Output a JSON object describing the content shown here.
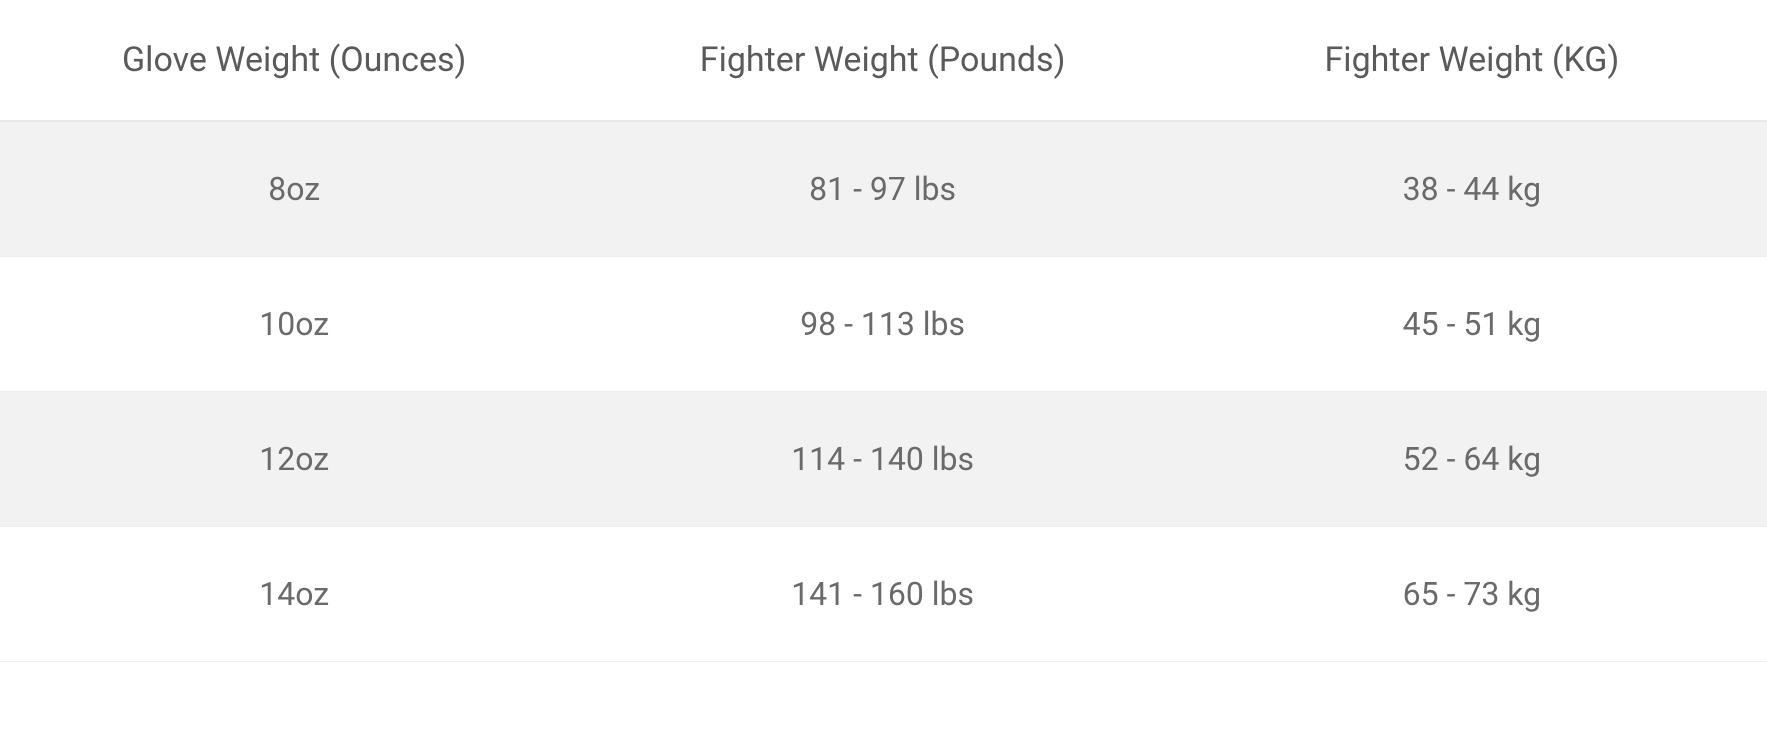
{
  "table": {
    "type": "table",
    "columns": [
      "Glove Weight (Ounces)",
      "Fighter Weight (Pounds)",
      "Fighter Weight (KG)"
    ],
    "rows": [
      [
        "8oz",
        "81 - 97 lbs",
        "38 - 44 kg"
      ],
      [
        "10oz",
        "98 - 113 lbs",
        "45 - 51 kg"
      ],
      [
        "12oz",
        "114 - 140 lbs",
        "52 - 64 kg"
      ],
      [
        "14oz",
        "141 - 160 lbs",
        "65 - 73 kg"
      ]
    ],
    "header_fontsize": 34,
    "cell_fontsize": 32,
    "header_color": "#5a5a5a",
    "cell_color": "#6a6a6a",
    "background_color": "#ffffff",
    "row_odd_bg": "#f2f2f2",
    "row_even_bg": "#ffffff",
    "border_color": "#eeeeee",
    "header_border_color": "#e8e8e8",
    "column_widths": [
      "33.3%",
      "33.3%",
      "33.4%"
    ],
    "text_align": "center"
  }
}
